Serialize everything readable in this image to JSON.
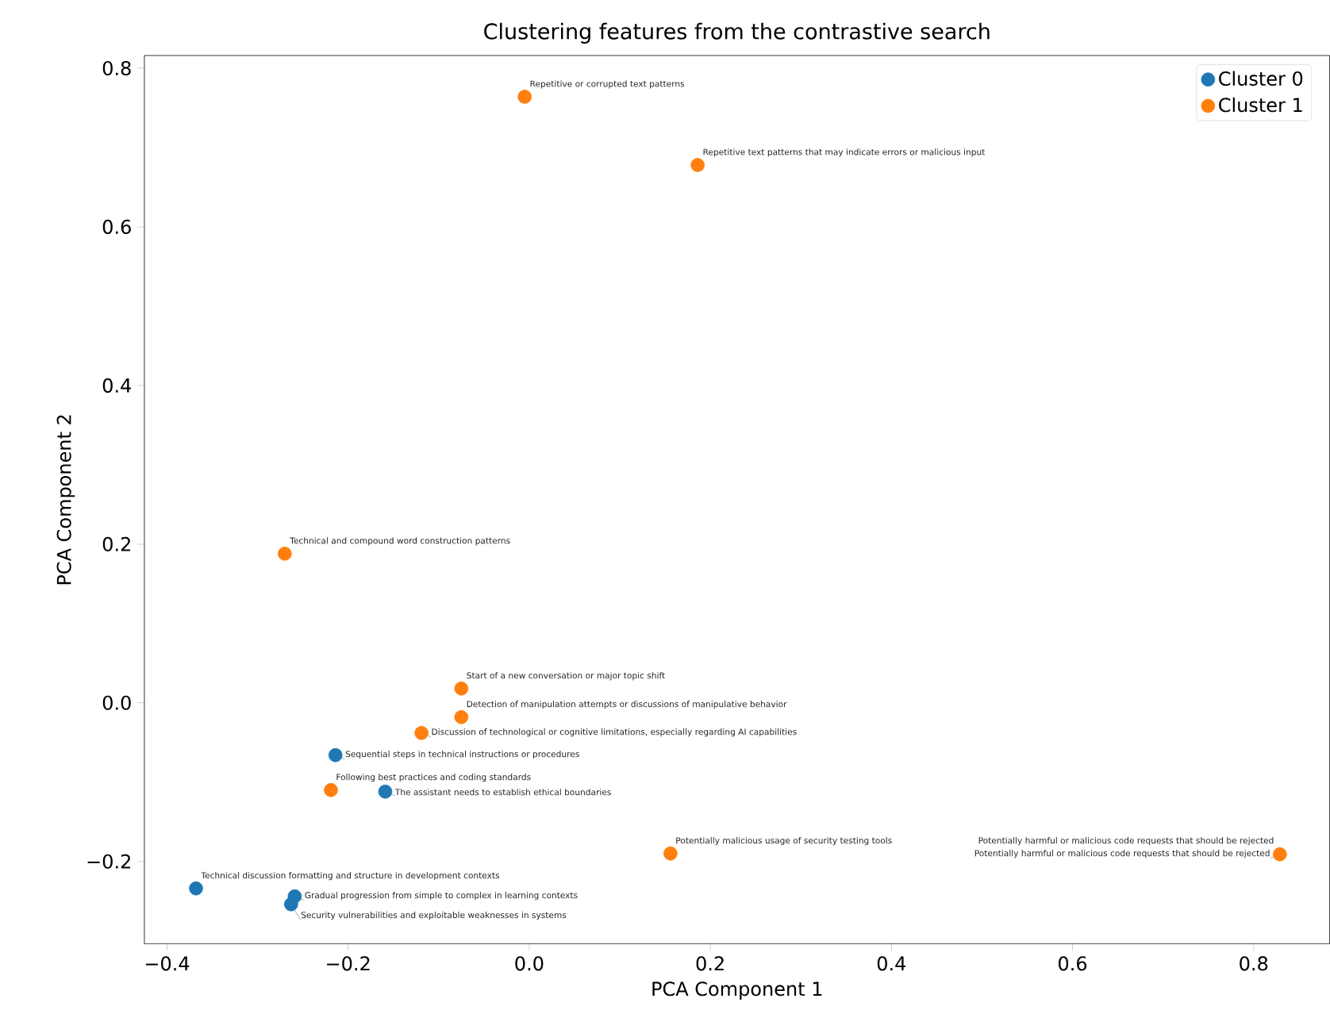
{
  "chart_data": {
    "type": "scatter",
    "title": "Clustering features from the contrastive search",
    "xlabel": "PCA Component 1",
    "ylabel": "PCA Component 2",
    "xlim": [
      -0.425,
      0.884
    ],
    "ylim": [
      -0.304,
      0.816
    ],
    "xticks": [
      {
        "value": -0.4,
        "label": "−0.4"
      },
      {
        "value": -0.2,
        "label": "−0.2"
      },
      {
        "value": 0,
        "label": "0.0"
      },
      0.2,
      0.4,
      0.6,
      0.8
    ],
    "yticks": [
      {
        "value": -0.2,
        "label": "−0.2"
      },
      {
        "value": 0,
        "label": "0.0"
      },
      0.2,
      0.4,
      0.6,
      0.8
    ],
    "grid": false,
    "legend": "top right",
    "marker": "circle",
    "series": [
      {
        "name": "Cluster 0",
        "color": "#1f77b4",
        "x": [
          -0.214,
          -0.159,
          -0.368,
          -0.259,
          -0.263
        ],
        "values": [
          -0.066,
          -0.112,
          -0.234,
          -0.244,
          -0.254
        ]
      },
      {
        "name": "Cluster 1",
        "color": "#ff7f0e",
        "x": [
          -0.005,
          0.186,
          -0.27,
          -0.075,
          -0.075,
          -0.119,
          -0.219,
          0.156,
          0.828,
          0.829
        ],
        "values": [
          0.764,
          0.678,
          0.188,
          0.018,
          -0.018,
          -0.038,
          -0.11,
          -0.19,
          null,
          -0.191
        ]
      }
    ],
    "annotations": [
      {
        "text": "Repetitive or corrupted text patterns",
        "x": -0.005,
        "y": 0.764
      },
      {
        "text": "Repetitive text patterns that may indicate errors or malicious input",
        "x": 0.186,
        "y": 0.678
      },
      {
        "text": "Technical and compound word construction patterns",
        "x": -0.27,
        "y": 0.188
      },
      {
        "text": "Start of a new conversation or major topic shift",
        "x": -0.075,
        "y": 0.018
      },
      {
        "text": "Detection of manipulation attempts or discussions of manipulative behavior",
        "x": -0.075,
        "y": -0.018
      },
      {
        "text": "Discussion of technological or cognitive limitations, especially regarding AI capabilities",
        "x": -0.119,
        "y": -0.038
      },
      {
        "text": "Sequential steps in technical instructions or procedures",
        "x": -0.214,
        "y": -0.066
      },
      {
        "text": "Following best practices and coding standards",
        "x": -0.219,
        "y": -0.11
      },
      {
        "text": "The assistant needs to establish ethical boundaries",
        "x": -0.159,
        "y": -0.112
      },
      {
        "text": "Potentially harmful or malicious code requests that should be rejected",
        "x": 0.828,
        "y": -0.19
      },
      {
        "text": "Potentially harmful or malicious code requests that should be rejected",
        "x": 0.829,
        "y": -0.191
      },
      {
        "text": "Potentially malicious usage of security testing tools",
        "x": 0.156,
        "y": -0.19
      },
      {
        "text": "Technical discussion formatting and structure in development contexts",
        "x": -0.368,
        "y": -0.234
      },
      {
        "text": "Gradual progression from simple to complex in learning contexts",
        "x": -0.259,
        "y": -0.244
      },
      {
        "text": "Security vulnerabilities and exploitable weaknesses in systems",
        "x": -0.263,
        "y": -0.254
      }
    ]
  }
}
